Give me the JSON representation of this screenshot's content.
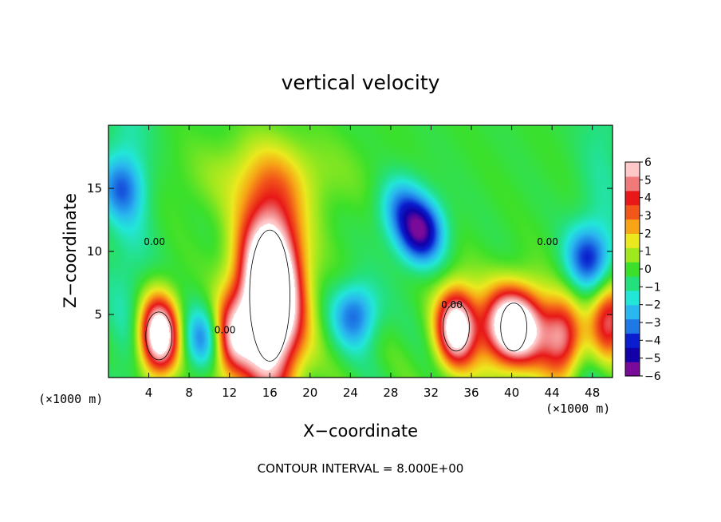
{
  "chart_data": {
    "type": "heatmap",
    "title": "vertical velocity",
    "xlabel": "X−coordinate",
    "ylabel": "Z−coordinate",
    "x_unit_left": "(×1000 m)",
    "x_unit_right": "(×1000 m)",
    "footer": "CONTOUR INTERVAL = 8.000E+00",
    "contour_label": "0.00",
    "xlim": [
      0,
      50
    ],
    "ylim": [
      0,
      20
    ],
    "x_ticks": [
      4,
      8,
      12,
      16,
      20,
      24,
      28,
      32,
      36,
      40,
      44,
      48
    ],
    "y_ticks": [
      5,
      10,
      15
    ],
    "colorbar": {
      "min": -6,
      "max": 6,
      "tick_values": [
        6,
        5,
        4,
        3,
        2,
        1,
        0,
        -1,
        -2,
        -3,
        -4,
        -5,
        -6
      ],
      "tick_labels": [
        "6",
        "5",
        "4",
        "3",
        "2",
        "1",
        "0",
        "−1",
        "−2",
        "−3",
        "−4",
        "−5",
        "−6"
      ],
      "colors": [
        "#7a0a99",
        "#1200a8",
        "#0a1ecf",
        "#1e78e6",
        "#2ab7ef",
        "#22e6d8",
        "#24e07c",
        "#3ce02a",
        "#a0e81e",
        "#ece81e",
        "#f7a516",
        "#f2561a",
        "#e81818",
        "#f07a7a",
        "#ffc8c8"
      ]
    },
    "features": [
      {
        "kind": "updraft",
        "x": 5,
        "z": 3.3,
        "peak": 10
      },
      {
        "kind": "updraft",
        "x": 16,
        "z": 6.5,
        "peak": 14
      },
      {
        "kind": "updraft",
        "x": 34.5,
        "z": 4.0,
        "peak": 9
      },
      {
        "kind": "updraft",
        "x": 40.2,
        "z": 4.0,
        "peak": 11
      },
      {
        "kind": "updraft",
        "x": 12,
        "z": 3.0,
        "peak": 6
      },
      {
        "kind": "updraft",
        "x": 45,
        "z": 3.0,
        "peak": 6
      },
      {
        "kind": "updraft",
        "x": 49.7,
        "z": 4.5,
        "peak": 7
      },
      {
        "kind": "downdraft",
        "x": 31,
        "z": 11.5,
        "peak": -6
      },
      {
        "kind": "downdraft",
        "x": 29,
        "z": 13.5,
        "peak": -3
      },
      {
        "kind": "downdraft",
        "x": 9.5,
        "z": 3.0,
        "peak": -4
      },
      {
        "kind": "downdraft",
        "x": 24.5,
        "z": 5.0,
        "peak": -4
      },
      {
        "kind": "downdraft",
        "x": 47.5,
        "z": 9.5,
        "peak": -4
      },
      {
        "kind": "downdraft",
        "x": 1.2,
        "z": 15.0,
        "peak": -3
      }
    ]
  }
}
